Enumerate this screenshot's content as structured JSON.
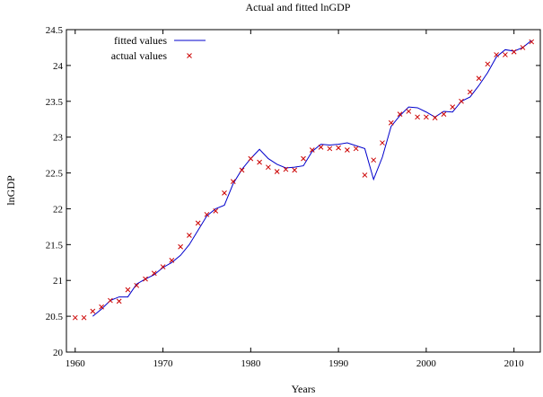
{
  "chart_data": {
    "type": "line",
    "title": "Actual and fitted lnGDP",
    "xlabel": "Years",
    "ylabel": "lnGDP",
    "xlim": [
      1959,
      2013
    ],
    "ylim": [
      20,
      24.5
    ],
    "xticks": [
      1960,
      1970,
      1980,
      1990,
      2000,
      2010
    ],
    "yticks": [
      20,
      20.5,
      21,
      21.5,
      22,
      22.5,
      23,
      23.5,
      24,
      24.5
    ],
    "xtick_labels": [
      "1960",
      "1970",
      "1980",
      "1990",
      "2000",
      "2010"
    ],
    "ytick_labels": [
      "20",
      "20.5",
      "21",
      "21.5",
      "22",
      "22.5",
      "23",
      "23.5",
      "24",
      "24.5"
    ],
    "grid": false,
    "legend_position": "top-left",
    "series": [
      {
        "name": "fitted values",
        "style": "line",
        "color": "#0000cc",
        "x": [
          1962,
          1963,
          1964,
          1965,
          1966,
          1967,
          1968,
          1969,
          1970,
          1971,
          1972,
          1973,
          1974,
          1975,
          1976,
          1977,
          1978,
          1979,
          1980,
          1981,
          1982,
          1983,
          1984,
          1985,
          1986,
          1987,
          1988,
          1989,
          1990,
          1991,
          1992,
          1993,
          1994,
          1995,
          1996,
          1997,
          1998,
          1999,
          2000,
          2001,
          2002,
          2003,
          2004,
          2005,
          2006,
          2007,
          2008,
          2009,
          2010,
          2011,
          2012
        ],
        "values": [
          20.5,
          20.6,
          20.72,
          20.77,
          20.77,
          20.95,
          21.02,
          21.08,
          21.18,
          21.25,
          21.35,
          21.5,
          21.7,
          21.9,
          22.0,
          22.05,
          22.35,
          22.55,
          22.7,
          22.83,
          22.7,
          22.62,
          22.57,
          22.58,
          22.6,
          22.8,
          22.9,
          22.89,
          22.9,
          22.92,
          22.88,
          22.84,
          22.41,
          22.72,
          23.15,
          23.3,
          23.42,
          23.41,
          23.35,
          23.28,
          23.36,
          23.35,
          23.5,
          23.56,
          23.72,
          23.9,
          24.12,
          24.22,
          24.2,
          24.25,
          24.35
        ]
      },
      {
        "name": "actual values",
        "style": "markers",
        "marker": "x",
        "color": "#cc0000",
        "x": [
          1960,
          1961,
          1962,
          1963,
          1964,
          1965,
          1966,
          1967,
          1968,
          1969,
          1970,
          1971,
          1972,
          1973,
          1974,
          1975,
          1976,
          1977,
          1978,
          1979,
          1980,
          1981,
          1982,
          1983,
          1984,
          1985,
          1986,
          1987,
          1988,
          1989,
          1990,
          1991,
          1992,
          1993,
          1994,
          1995,
          1996,
          1997,
          1998,
          1999,
          2000,
          2001,
          2002,
          2003,
          2004,
          2005,
          2006,
          2007,
          2008,
          2009,
          2010,
          2011,
          2012
        ],
        "values": [
          20.48,
          20.48,
          20.57,
          20.63,
          20.72,
          20.71,
          20.87,
          20.93,
          21.02,
          21.1,
          21.19,
          21.28,
          21.47,
          21.63,
          21.8,
          21.92,
          21.97,
          22.22,
          22.38,
          22.54,
          22.7,
          22.65,
          22.58,
          22.52,
          22.55,
          22.54,
          22.7,
          22.82,
          22.86,
          22.84,
          22.85,
          22.82,
          22.84,
          22.47,
          22.68,
          22.92,
          23.2,
          23.32,
          23.36,
          23.28,
          23.28,
          23.27,
          23.32,
          23.42,
          23.5,
          23.63,
          23.82,
          24.02,
          24.15,
          24.15,
          24.19,
          24.25,
          24.33
        ]
      }
    ]
  }
}
